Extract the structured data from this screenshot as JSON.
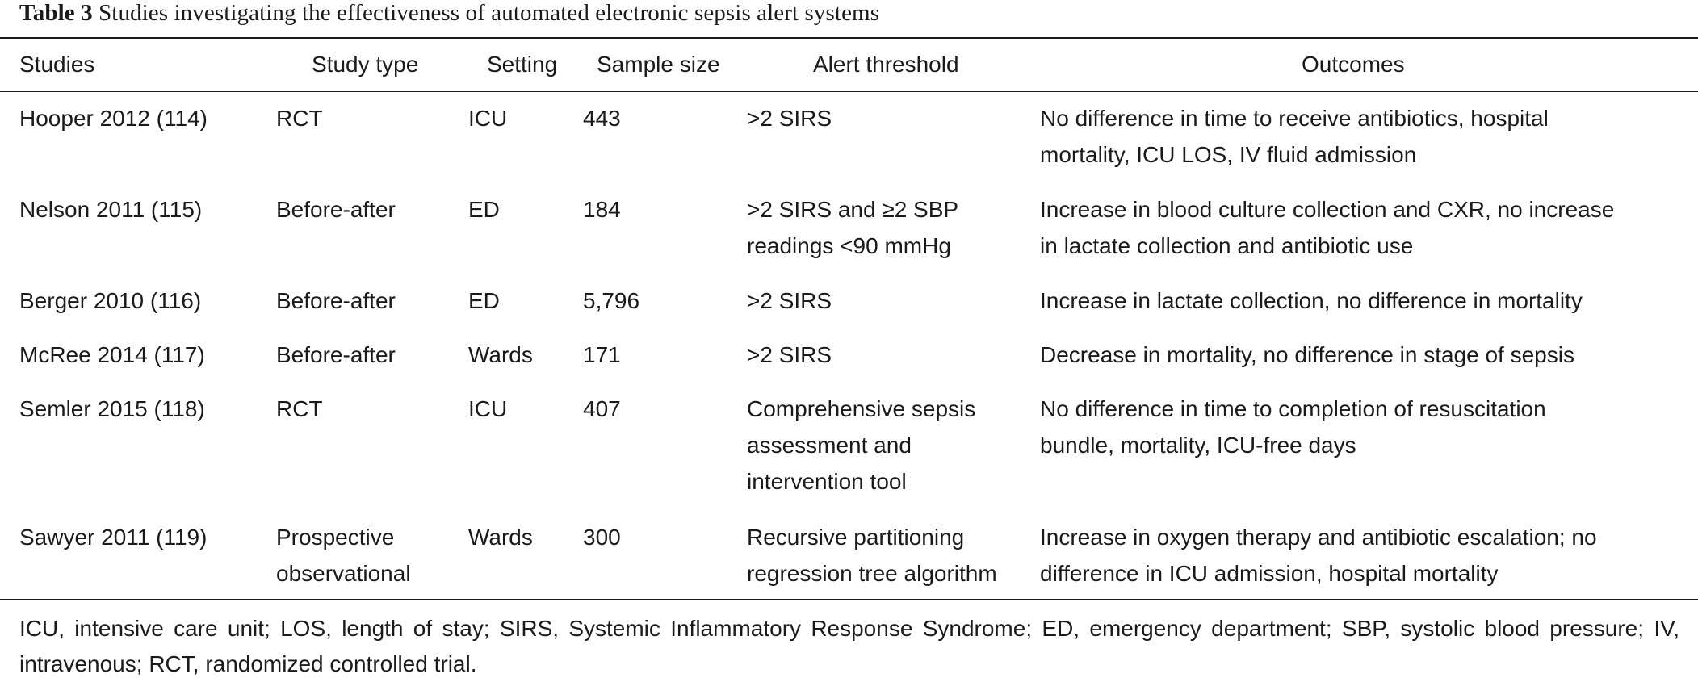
{
  "caption": {
    "label": "Table 3",
    "title": "Studies investigating the effectiveness of automated electronic sepsis alert systems"
  },
  "columns": [
    "Studies",
    "Study type",
    "Setting",
    "Sample size",
    "Alert threshold",
    "Outcomes"
  ],
  "rows": [
    {
      "study": "Hooper 2012 (114)",
      "type": [
        "RCT"
      ],
      "setting": "ICU",
      "sample": "443",
      "threshold": [
        ">2 SIRS"
      ],
      "outcomes": [
        "No difference in time to receive antibiotics, hospital",
        "mortality, ICU LOS, IV fluid admission"
      ]
    },
    {
      "study": "Nelson 2011 (115)",
      "type": [
        "Before-after"
      ],
      "setting": "ED",
      "sample": "184",
      "threshold": [
        ">2 SIRS and ≥2 SBP",
        "readings <90 mmHg"
      ],
      "outcomes": [
        "Increase in blood culture collection and CXR, no increase",
        "in lactate collection and antibiotic use"
      ]
    },
    {
      "study": "Berger 2010 (116)",
      "type": [
        "Before-after"
      ],
      "setting": "ED",
      "sample": "5,796",
      "threshold": [
        ">2 SIRS"
      ],
      "outcomes": [
        "Increase in lactate collection, no difference in mortality"
      ]
    },
    {
      "study": "McRee 2014 (117)",
      "type": [
        "Before-after"
      ],
      "setting": "Wards",
      "sample": "171",
      "threshold": [
        ">2 SIRS"
      ],
      "outcomes": [
        "Decrease in mortality, no difference in stage of sepsis"
      ]
    },
    {
      "study": "Semler 2015 (118)",
      "type": [
        "RCT"
      ],
      "setting": "ICU",
      "sample": "407",
      "threshold": [
        "Comprehensive sepsis",
        "assessment and",
        "intervention tool"
      ],
      "outcomes": [
        "No difference in time to completion of resuscitation",
        "bundle, mortality, ICU-free days"
      ]
    },
    {
      "study": "Sawyer 2011 (119)",
      "type": [
        "Prospective",
        "observational"
      ],
      "setting": "Wards",
      "sample": "300",
      "threshold": [
        "Recursive partitioning",
        "regression tree algorithm"
      ],
      "outcomes": [
        "Increase in oxygen therapy and antibiotic escalation; no",
        "difference in ICU admission, hospital mortality"
      ]
    }
  ],
  "footnote": "ICU, intensive care unit; LOS, length of stay; SIRS, Systemic Inflammatory Response Syndrome; ED, emergency department; SBP, systolic blood pressure; IV, intravenous; RCT, randomized controlled trial."
}
